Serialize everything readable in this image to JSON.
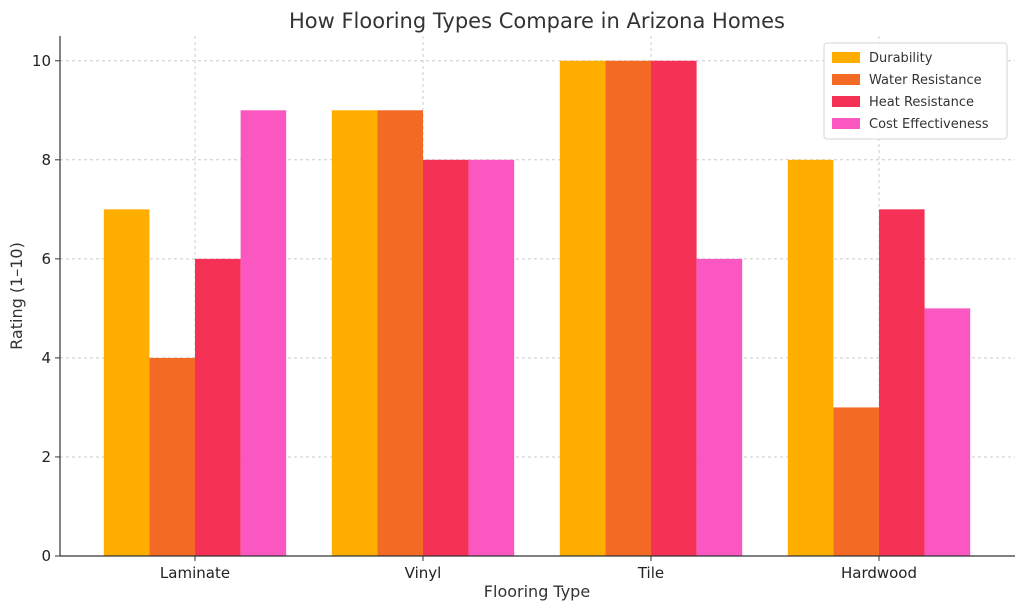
{
  "chart_data": {
    "type": "bar",
    "title": "How Flooring Types Compare in Arizona Homes",
    "xlabel": "Flooring Type",
    "ylabel": "Rating (1–10)",
    "categories": [
      "Laminate",
      "Vinyl",
      "Tile",
      "Hardwood"
    ],
    "series": [
      {
        "name": "Durability",
        "color": "#ffae00",
        "values": [
          7,
          9,
          10,
          8
        ]
      },
      {
        "name": "Water Resistance",
        "color": "#f26a24",
        "values": [
          4,
          9,
          10,
          3
        ]
      },
      {
        "name": "Heat Resistance",
        "color": "#f53155",
        "values": [
          6,
          8,
          10,
          7
        ]
      },
      {
        "name": "Cost Effectiveness",
        "color": "#fa57c1",
        "values": [
          9,
          8,
          6,
          5
        ]
      }
    ],
    "ylim": [
      0,
      10.5
    ],
    "yticks": [
      0,
      2,
      4,
      6,
      8,
      10
    ],
    "grid": true,
    "legend_position": "top-right"
  }
}
